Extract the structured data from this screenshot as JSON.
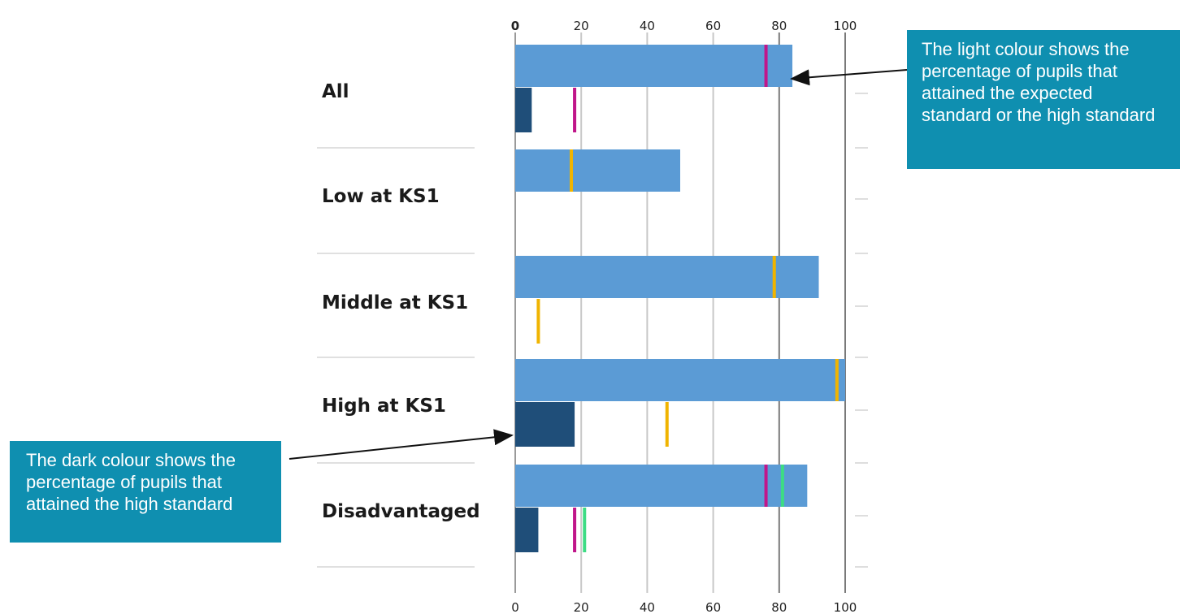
{
  "chart_data": {
    "type": "bar",
    "orientation": "horizontal",
    "categories": [
      "All",
      "Low at KS1",
      "Middle at KS1",
      "High at KS1",
      "Disadvantaged"
    ],
    "series": [
      {
        "color": "#5b9bd5",
        "values": [
          84,
          50,
          92,
          100,
          88.5
        ]
      },
      {
        "color": "#1f4e79",
        "values": [
          5,
          null,
          null,
          18,
          7
        ]
      }
    ],
    "markers": [
      {
        "category": 0,
        "bar": 0,
        "value": 76,
        "color": "#c0168a"
      },
      {
        "category": 0,
        "bar": 1,
        "value": 18,
        "color": "#c0168a"
      },
      {
        "category": 1,
        "bar": 0,
        "value": 17,
        "color": "#f0b400"
      },
      {
        "category": 2,
        "bar": 0,
        "value": 78.5,
        "color": "#f0b400"
      },
      {
        "category": 2,
        "bar": 1,
        "value": 7,
        "color": "#f0b400"
      },
      {
        "category": 3,
        "bar": 0,
        "value": 97.5,
        "color": "#f0b400"
      },
      {
        "category": 3,
        "bar": 1,
        "value": 46,
        "color": "#f0b400"
      },
      {
        "category": 4,
        "bar": 0,
        "value": 76,
        "color": "#c0168a"
      },
      {
        "category": 4,
        "bar": 0,
        "value": 81,
        "color": "#3ddc84"
      },
      {
        "category": 4,
        "bar": 1,
        "value": 18,
        "color": "#c0168a"
      },
      {
        "category": 4,
        "bar": 1,
        "value": 21,
        "color": "#3ddc84"
      }
    ],
    "xlim": [
      0,
      100
    ],
    "xticks": [
      "0",
      "20",
      "40",
      "60",
      "80",
      "100"
    ],
    "grid": true
  },
  "annotations": {
    "light": "The light colour shows the percentage of pupils that attained the expected standard or the high standard",
    "dark": "The dark colour shows the percentage of pupils that attained the high standard"
  }
}
